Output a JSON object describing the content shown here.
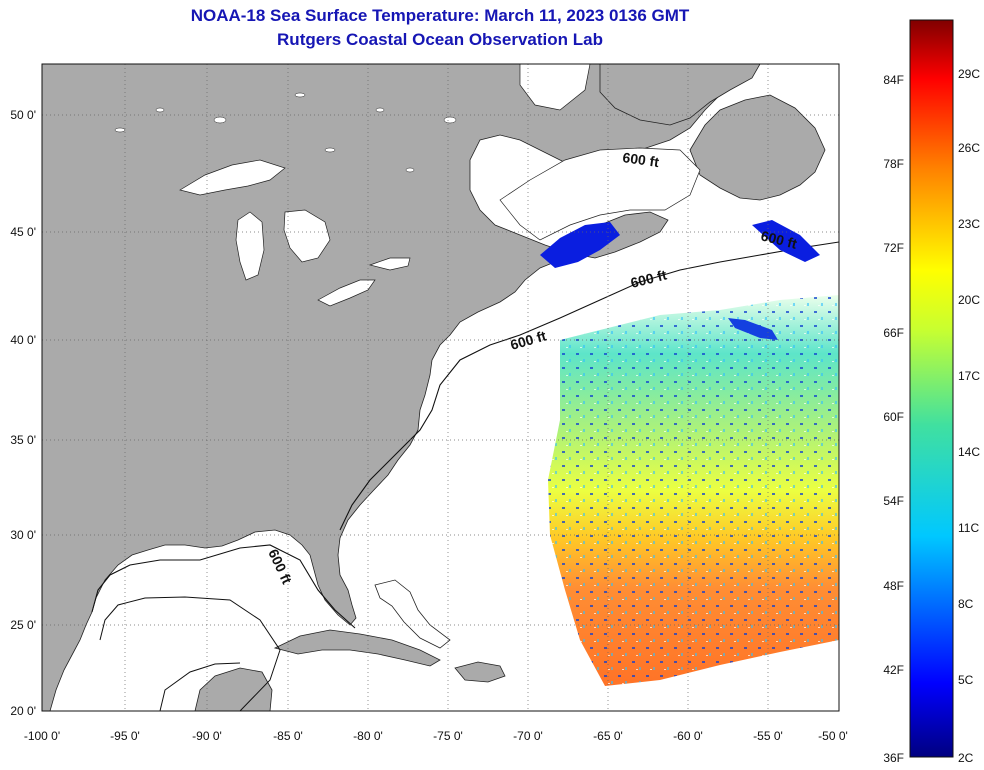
{
  "title": "NOAA-18 Sea Surface Temperature:  March 11, 2023 0136 GMT",
  "subtitle": "Rutgers Coastal Ocean Observation Lab",
  "lat_labels": [
    "50 0'",
    "45 0'",
    "40 0'",
    "35 0'",
    "30 0'",
    "25 0'",
    "20 0'"
  ],
  "lon_labels": [
    "-100 0'",
    "-95 0'",
    "-90 0'",
    "-85 0'",
    "-80 0'",
    "-75 0'",
    "-70 0'",
    "-65 0'",
    "-60 0'",
    "-55 0'",
    "-50 0'"
  ],
  "contour_label": "600 ft",
  "colorbar": {
    "f_labels": [
      "84F",
      "78F",
      "72F",
      "66F",
      "60F",
      "54F",
      "48F",
      "42F",
      "36F"
    ],
    "c_labels": [
      "29C",
      "26C",
      "23C",
      "20C",
      "17C",
      "14C",
      "11C",
      "8C",
      "5C",
      "2C"
    ]
  },
  "colors": {
    "land": "#aaaaaa",
    "ocean_no_data": "#ffffff",
    "title": "#1616b4"
  }
}
